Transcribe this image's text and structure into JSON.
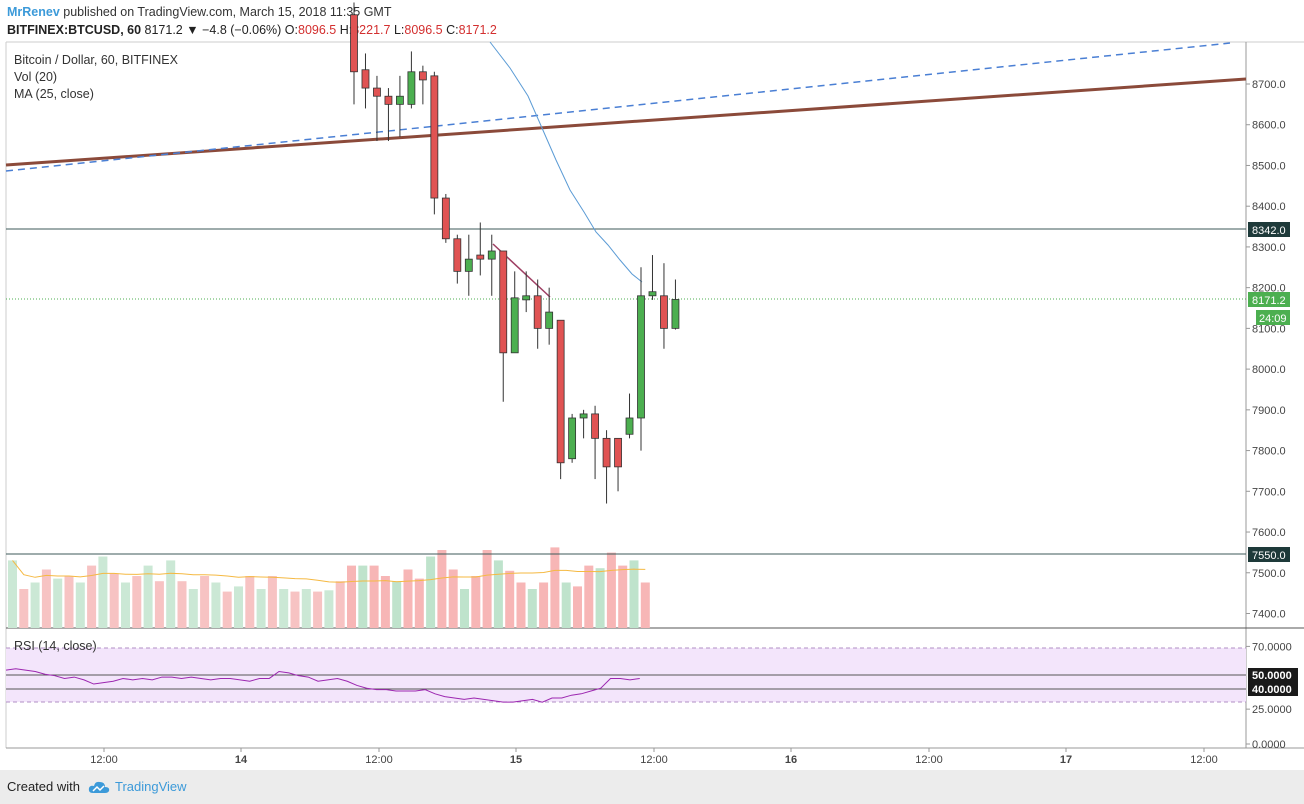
{
  "header": {
    "author": "MrRenev",
    "published": "published on TradingView.com, March 15, 2018 11:35 GMT",
    "symbol": "BITFINEX:BTCUSD, 60",
    "last": "8171.2",
    "change": "▼ −4.8 (−0.06%)",
    "o_label": "O:",
    "o_val": "8096.5",
    "h_label": "H:",
    "h_val": "8221.7",
    "l_label": "L:",
    "l_val": "8096.5",
    "c_label": "C:",
    "c_val": "8171.2"
  },
  "legend": {
    "title": "Bitcoin / Dollar, 60, BITFINEX",
    "vol": "Vol (20)",
    "ma": "MA (25, close)",
    "rsi": "RSI (14, close)"
  },
  "footer": {
    "created_with": "Created with",
    "brand": "TradingView"
  },
  "colors": {
    "up": "#4caf50",
    "down": "#e05353",
    "ma": "#5b9bd5",
    "trend_solid": "#8b4a3a",
    "trend_dashed": "#4a7fd4",
    "rsi": "#9c27b0",
    "rsi_band": "#f3e5fb"
  },
  "chart_data": {
    "type": "candlestick",
    "price_axis": {
      "ticks": [
        "8700.0",
        "8600.0",
        "8500.0",
        "8400.0",
        "8300.0",
        "8200.0",
        "8100.0",
        "8000.0",
        "7900.0",
        "7800.0",
        "7700.0",
        "7600.0",
        "7500.0",
        "7400.0"
      ],
      "range": [
        7350,
        8860
      ]
    },
    "time_axis": {
      "labels": [
        "12:00",
        "14",
        "12:00",
        "15",
        "12:00",
        "16",
        "12:00",
        "17",
        "12:00"
      ]
    },
    "horizontal_levels": [
      8342.0,
      7550.0
    ],
    "level_labels": [
      "8342.0",
      "7550.0"
    ],
    "last_price_label": "8171.2",
    "countdown_label": "24:09",
    "last_price": 8171.2,
    "candles": [
      {
        "o": 8870,
        "h": 8900,
        "l": 8650,
        "c": 8730
      },
      {
        "o": 8735,
        "h": 8775,
        "l": 8640,
        "c": 8690
      },
      {
        "o": 8690,
        "h": 8720,
        "l": 8560,
        "c": 8670
      },
      {
        "o": 8670,
        "h": 8690,
        "l": 8560,
        "c": 8650
      },
      {
        "o": 8650,
        "h": 8720,
        "l": 8570,
        "c": 8670
      },
      {
        "o": 8650,
        "h": 8780,
        "l": 8640,
        "c": 8730
      },
      {
        "o": 8730,
        "h": 8745,
        "l": 8650,
        "c": 8710
      },
      {
        "o": 8720,
        "h": 8730,
        "l": 8380,
        "c": 8420
      },
      {
        "o": 8420,
        "h": 8430,
        "l": 8310,
        "c": 8320
      },
      {
        "o": 8320,
        "h": 8330,
        "l": 8210,
        "c": 8240
      },
      {
        "o": 8240,
        "h": 8330,
        "l": 8180,
        "c": 8270
      },
      {
        "o": 8280,
        "h": 8360,
        "l": 8230,
        "c": 8270
      },
      {
        "o": 8270,
        "h": 8330,
        "l": 8180,
        "c": 8290
      },
      {
        "o": 8290,
        "h": 8290,
        "l": 7920,
        "c": 8040
      },
      {
        "o": 8040,
        "h": 8240,
        "l": 8040,
        "c": 8175
      },
      {
        "o": 8170,
        "h": 8240,
        "l": 8140,
        "c": 8180
      },
      {
        "o": 8180,
        "h": 8220,
        "l": 8050,
        "c": 8100
      },
      {
        "o": 8100,
        "h": 8200,
        "l": 8060,
        "c": 8140
      },
      {
        "o": 8120,
        "h": 8120,
        "l": 7730,
        "c": 7770
      },
      {
        "o": 7780,
        "h": 7890,
        "l": 7770,
        "c": 7880
      },
      {
        "o": 7880,
        "h": 7900,
        "l": 7830,
        "c": 7890
      },
      {
        "o": 7890,
        "h": 7910,
        "l": 7730,
        "c": 7830
      },
      {
        "o": 7830,
        "h": 7850,
        "l": 7670,
        "c": 7760
      },
      {
        "o": 7830,
        "h": 7830,
        "l": 7700,
        "c": 7760
      },
      {
        "o": 7840,
        "h": 7940,
        "l": 7830,
        "c": 7880
      },
      {
        "o": 7880,
        "h": 8250,
        "l": 7800,
        "c": 8180
      },
      {
        "o": 8180,
        "h": 8280,
        "l": 8170,
        "c": 8190
      },
      {
        "o": 8180,
        "h": 8260,
        "l": 8050,
        "c": 8100
      },
      {
        "o": 8100,
        "h": 8220,
        "l": 8097,
        "c": 8171
      }
    ],
    "volume": [
      52,
      30,
      35,
      45,
      38,
      40,
      35,
      48,
      55,
      42,
      35,
      40,
      48,
      36,
      52,
      36,
      30,
      40,
      35,
      28,
      32,
      40,
      30,
      40,
      30,
      28,
      30,
      28,
      29,
      36,
      48,
      48,
      48,
      40,
      36,
      45,
      38,
      55,
      60,
      45,
      30,
      40,
      60,
      52,
      44,
      35,
      30,
      35,
      62,
      35,
      32,
      48,
      46,
      58,
      48,
      52,
      35
    ],
    "ma_line_note": "",
    "rsi": {
      "levels": [
        "70.0000",
        "50.0000",
        "40.0000",
        "25.0000",
        "0.0000"
      ],
      "range": [
        0,
        80
      ],
      "values": [
        53,
        54,
        53,
        52,
        50,
        49,
        47,
        48,
        46,
        43,
        44,
        45,
        47,
        46,
        47,
        46,
        48,
        48,
        47,
        48,
        47,
        46,
        47,
        47,
        46,
        45,
        47,
        47,
        52,
        51,
        49,
        48,
        45,
        46,
        47,
        45,
        42,
        40,
        39,
        39,
        38,
        38,
        38,
        39,
        36,
        34,
        33,
        32,
        33,
        32,
        31,
        30,
        30,
        31,
        32,
        30,
        33,
        33,
        35,
        36,
        38,
        40,
        47,
        47,
        46,
        47
      ]
    }
  }
}
